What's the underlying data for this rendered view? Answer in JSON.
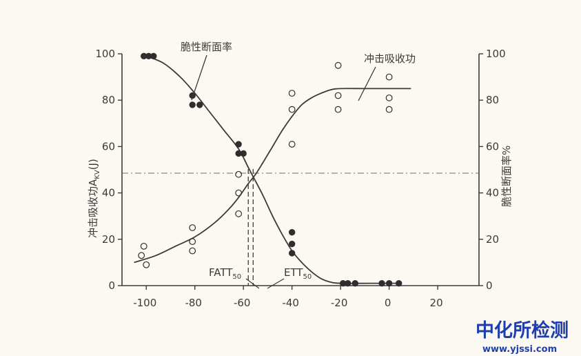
{
  "chart_data": {
    "type": "scatter",
    "title": "",
    "xlabel": "",
    "ylabel": "冲击吸收功A",
    "ylabel_sub": "KV",
    "ylabel_unit": "(J)",
    "y2label": "脆性断面率%",
    "xlim": [
      -110,
      37
    ],
    "ylim": [
      0,
      100
    ],
    "y2lim": [
      0,
      100
    ],
    "x_ticks": [
      "-100",
      "-80",
      "-60",
      "-40",
      "-20",
      "0",
      "20"
    ],
    "x_tick_values": [
      -100,
      -80,
      -60,
      -40,
      -20,
      0,
      20
    ],
    "y_ticks": [
      "0",
      "20",
      "40",
      "60",
      "80",
      "100"
    ],
    "y_tick_values": [
      0,
      20,
      40,
      60,
      80,
      100
    ],
    "y2_ticks": [
      "0",
      "20",
      "40",
      "60",
      "80",
      "100"
    ],
    "y2_tick_values": [
      0,
      20,
      40,
      60,
      80,
      100
    ],
    "grid": false,
    "series": [
      {
        "name": "脆性断面率",
        "marker": "filled-circle",
        "axis": "right",
        "points": [
          [
            -101,
            99
          ],
          [
            -99,
            99
          ],
          [
            -97,
            99
          ],
          [
            -81,
            82
          ],
          [
            -81,
            78
          ],
          [
            -78,
            78
          ],
          [
            -62,
            61
          ],
          [
            -62,
            57
          ],
          [
            -60,
            57
          ],
          [
            -40,
            23
          ],
          [
            -40,
            18
          ],
          [
            -40,
            14
          ],
          [
            -19,
            1
          ],
          [
            -17,
            1
          ],
          [
            -14,
            1
          ],
          [
            -3,
            1
          ],
          [
            0,
            1
          ],
          [
            4,
            1
          ]
        ],
        "curve": [
          [
            -100,
            99
          ],
          [
            -93,
            96
          ],
          [
            -86,
            90
          ],
          [
            -80,
            83
          ],
          [
            -74,
            75
          ],
          [
            -68,
            67
          ],
          [
            -62,
            59
          ],
          [
            -58,
            51
          ],
          [
            -56,
            47
          ],
          [
            -52,
            39
          ],
          [
            -48,
            30
          ],
          [
            -44,
            22
          ],
          [
            -40,
            15
          ],
          [
            -36,
            10
          ],
          [
            -32,
            6
          ],
          [
            -28,
            3
          ],
          [
            -24,
            1.5
          ],
          [
            -20,
            1
          ],
          [
            -8,
            1
          ],
          [
            4,
            1
          ]
        ]
      },
      {
        "name": "冲击吸收功",
        "marker": "open-circle",
        "axis": "left",
        "points": [
          [
            -101,
            17
          ],
          [
            -102,
            13
          ],
          [
            -100,
            9
          ],
          [
            -81,
            25
          ],
          [
            -81,
            19
          ],
          [
            -81,
            15
          ],
          [
            -62,
            48
          ],
          [
            -62,
            40
          ],
          [
            -62,
            31
          ],
          [
            -40,
            83
          ],
          [
            -40,
            76
          ],
          [
            -40,
            61
          ],
          [
            -21,
            95
          ],
          [
            -21,
            82
          ],
          [
            -21,
            76
          ],
          [
            0,
            90
          ],
          [
            0,
            81
          ],
          [
            0,
            76
          ]
        ],
        "curve": [
          [
            -105,
            10
          ],
          [
            -96,
            13
          ],
          [
            -88,
            17
          ],
          [
            -80,
            21
          ],
          [
            -72,
            27
          ],
          [
            -66,
            33
          ],
          [
            -62,
            38
          ],
          [
            -58,
            44
          ],
          [
            -55,
            48
          ],
          [
            -52,
            53
          ],
          [
            -48,
            60
          ],
          [
            -44,
            67
          ],
          [
            -40,
            73
          ],
          [
            -36,
            78
          ],
          [
            -32,
            81
          ],
          [
            -28,
            83
          ],
          [
            -24,
            84.5
          ],
          [
            -20,
            85
          ],
          [
            -10,
            85
          ],
          [
            0,
            85
          ],
          [
            9,
            85
          ]
        ]
      }
    ],
    "reference_lines": {
      "horizontal_y": 48.5,
      "vertical_x": [
        -58,
        -56
      ]
    },
    "annotations": [
      {
        "text": "脆性断面率",
        "points_to": "脆性断面率"
      },
      {
        "text": "冲击吸收功",
        "points_to": "冲击吸收功"
      },
      {
        "text": "FATT",
        "sub": "50",
        "points_to_x": -58
      },
      {
        "text": "ETT",
        "sub": "50",
        "points_to_x": -56
      }
    ]
  },
  "watermark": {
    "name": "中化所检测",
    "url": "www.yjssi.com",
    "color": "#1d3fae"
  }
}
